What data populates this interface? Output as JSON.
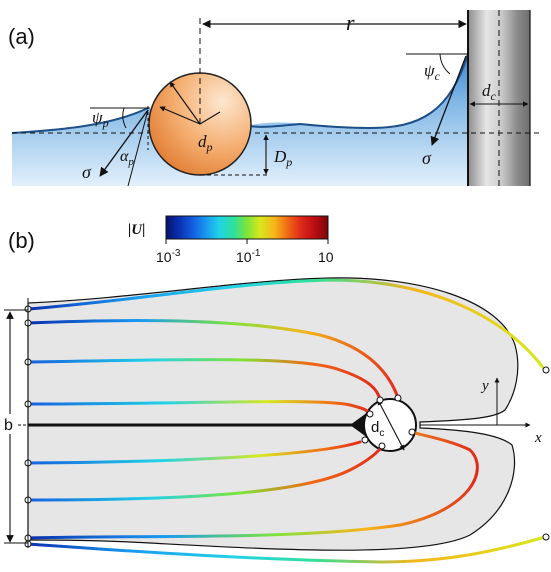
{
  "panel_a": {
    "label": "(a)",
    "r": "r",
    "psi_p": "ψ",
    "psi_p_sub": "p",
    "psi_c": "ψ",
    "psi_c_sub": "c",
    "alpha_p": "α",
    "alpha_p_sub": "p",
    "d_p": "d",
    "d_p_sub": "p",
    "D_p": "D",
    "D_p_sub": "p",
    "d_c": "d",
    "d_c_sub": "c",
    "sigma_left": "σ",
    "sigma_right": "σ",
    "colors": {
      "water_top": "#bcd9f3",
      "water_bottom": "#3a86cf",
      "particle_light": "#fbd7b3",
      "particle_dark": "#e8843b",
      "cylinder": "#9a9a9a"
    }
  },
  "panel_b": {
    "label": "(b)",
    "colorbar": {
      "title": "|U|",
      "ticks": [
        "10",
        "10",
        "10"
      ],
      "tick_exponents": [
        "-3",
        "-1",
        ""
      ],
      "colors": [
        "#06126b",
        "#0a2fb0",
        "#1460e0",
        "#1a9af0",
        "#22d3e6",
        "#2fe09a",
        "#7ee43a",
        "#d8e81e",
        "#f6b51a",
        "#f06a14",
        "#e02a1a",
        "#b80d12",
        "#7a0608"
      ]
    },
    "b_label": "b",
    "d_c_label": "d",
    "d_c_sub": "c",
    "x_axis": "x",
    "y_axis": "y",
    "colors": {
      "region_fill": "#e6e6e6",
      "region_stroke": "#111111"
    }
  }
}
